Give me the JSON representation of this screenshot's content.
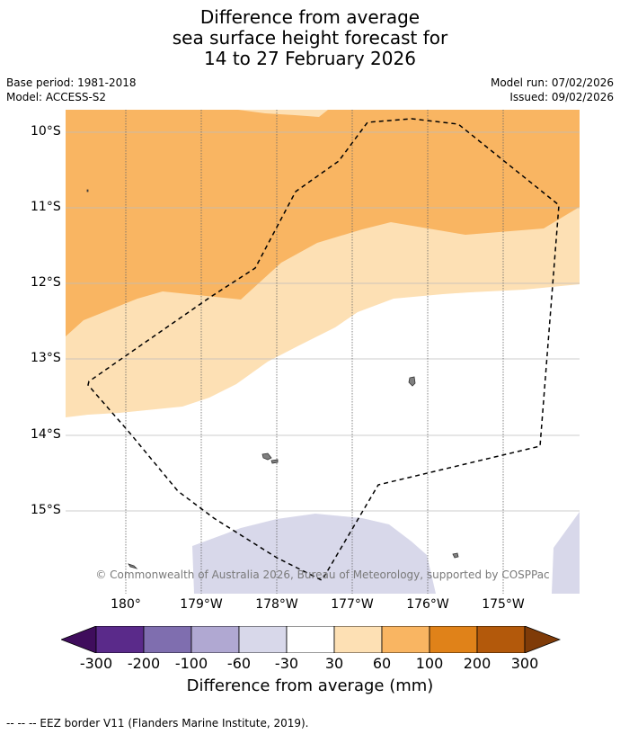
{
  "title": {
    "line1": "Difference from average",
    "line2": "sea surface height forecast for",
    "line3": "14 to 27 February 2026"
  },
  "meta": {
    "base_period": "Base period: 1981-2018",
    "model": "Model: ACCESS-S2",
    "model_run": "Model run: 07/02/2026",
    "issued": "Issued: 09/02/2026"
  },
  "map": {
    "lat_labels": [
      "10°S",
      "11°S",
      "12°S",
      "13°S",
      "14°S",
      "15°S"
    ],
    "lon_labels": [
      "180°",
      "179°W",
      "178°W",
      "177°W",
      "176°W",
      "175°W"
    ],
    "copyright": "© Commonwealth of Australia 2026, Bureau of Meteorology, supported by COSPPac",
    "border_color": "#000000",
    "land_color": "#808080"
  },
  "colorbar": {
    "labels": [
      "-300",
      "-200",
      "-100",
      "-60",
      "-30",
      "30",
      "60",
      "100",
      "200",
      "300"
    ],
    "colors": [
      "#3f0d5c",
      "#5a2a8a",
      "#7f6eaf",
      "#b0a8d2",
      "#d8d8ea",
      "#ffffff",
      "#fde0b4",
      "#f9b562",
      "#e08219",
      "#b3590b",
      "#7f3b08"
    ],
    "title": "Difference from average (mm)"
  },
  "footnote": "--  --  -- EEZ border V11 (Flanders Marine Institute, 2019)."
}
